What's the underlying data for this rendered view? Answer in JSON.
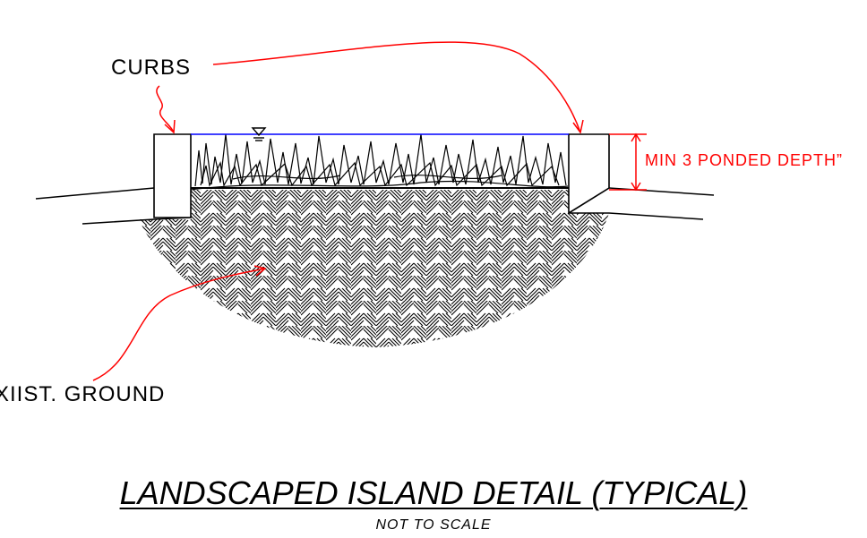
{
  "labels": {
    "curbs": "CURBS",
    "existing_ground": "XIIST.  GROUND",
    "ponded_depth": "MIN 3 PONDED DEPTH”"
  },
  "title": {
    "main": "LANDSCAPED ISLAND DETAIL (TYPICAL)",
    "scale_note": "NOT TO SCALE"
  },
  "colors": {
    "linework": "#000000",
    "leaders": "#ff0000",
    "water_surface": "#0000ff"
  },
  "icons": {
    "water_level": "water-level-triangle-icon"
  }
}
